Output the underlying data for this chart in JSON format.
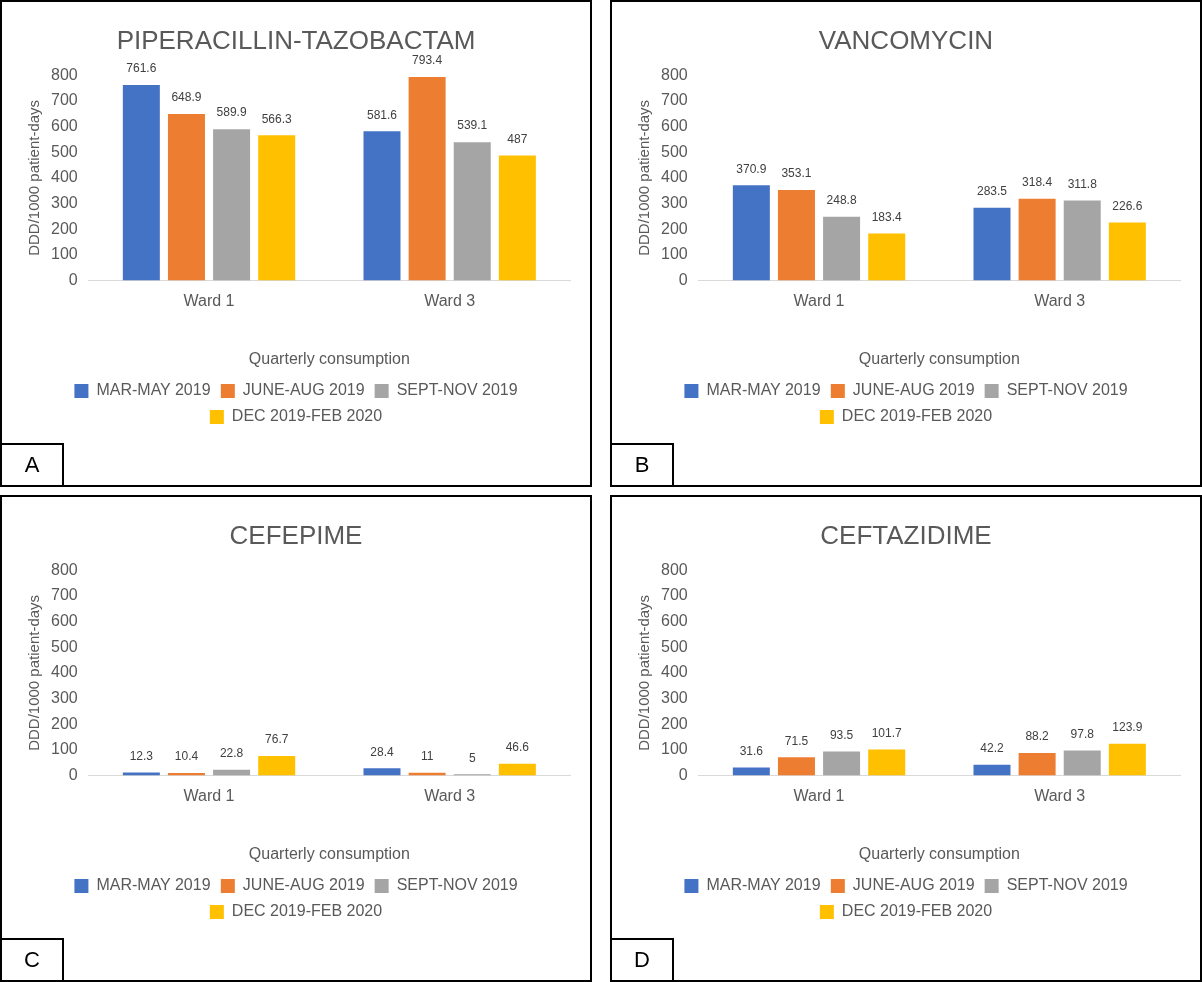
{
  "chart_data": [
    {
      "type": "bar",
      "title": "PIPERACILLIN-TAZOBACTAM",
      "xlabel": "Quarterly consumption",
      "ylabel": "DDD/1000 patient-days",
      "categories": [
        "Ward 1",
        "Ward 3"
      ],
      "series": [
        {
          "name": "MAR-MAY 2019",
          "color": "#4472c4",
          "values": [
            761.6,
            581.6
          ]
        },
        {
          "name": "JUNE-AUG 2019",
          "color": "#ed7d31",
          "values": [
            648.9,
            793.4
          ]
        },
        {
          "name": "SEPT-NOV 2019",
          "color": "#a5a5a5",
          "values": [
            589.9,
            539.1
          ]
        },
        {
          "name": "DEC 2019-FEB 2020",
          "color": "#ffc000",
          "values": [
            566.3,
            487
          ]
        }
      ],
      "ylim": [
        0,
        800
      ],
      "yticks": [
        0,
        100,
        200,
        300,
        400,
        500,
        600,
        700,
        800
      ],
      "grid": false,
      "legend": "bottom",
      "data_labels": true,
      "annotations": [
        "A"
      ]
    },
    {
      "type": "bar",
      "title": "VANCOMYCIN",
      "xlabel": "Quarterly consumption",
      "ylabel": "DDD/1000 patient-days",
      "categories": [
        "Ward 1",
        "Ward 3"
      ],
      "series": [
        {
          "name": "MAR-MAY 2019",
          "color": "#4472c4",
          "values": [
            370.9,
            283.5
          ]
        },
        {
          "name": "JUNE-AUG 2019",
          "color": "#ed7d31",
          "values": [
            353.1,
            318.4
          ]
        },
        {
          "name": "SEPT-NOV 2019",
          "color": "#a5a5a5",
          "values": [
            248.8,
            311.8
          ]
        },
        {
          "name": "DEC 2019-FEB 2020",
          "color": "#ffc000",
          "values": [
            183.4,
            226.6
          ]
        }
      ],
      "ylim": [
        0,
        800
      ],
      "yticks": [
        0,
        100,
        200,
        300,
        400,
        500,
        600,
        700,
        800
      ],
      "grid": false,
      "legend": "bottom",
      "data_labels": true,
      "annotations": [
        "B"
      ]
    },
    {
      "type": "bar",
      "title": "CEFEPIME",
      "xlabel": "Quarterly consumption",
      "ylabel": "DDD/1000 patient-days",
      "categories": [
        "Ward 1",
        "Ward 3"
      ],
      "series": [
        {
          "name": "MAR-MAY 2019",
          "color": "#4472c4",
          "values": [
            12.3,
            28.4
          ]
        },
        {
          "name": "JUNE-AUG 2019",
          "color": "#ed7d31",
          "values": [
            10.4,
            11
          ]
        },
        {
          "name": "SEPT-NOV 2019",
          "color": "#a5a5a5",
          "values": [
            22.8,
            5
          ]
        },
        {
          "name": "DEC 2019-FEB 2020",
          "color": "#ffc000",
          "values": [
            76.7,
            46.6
          ]
        }
      ],
      "ylim": [
        0,
        800
      ],
      "yticks": [
        0,
        100,
        200,
        300,
        400,
        500,
        600,
        700,
        800
      ],
      "grid": false,
      "legend": "bottom",
      "data_labels": true,
      "annotations": [
        "C"
      ]
    },
    {
      "type": "bar",
      "title": "CEFTAZIDIME",
      "xlabel": "Quarterly consumption",
      "ylabel": "DDD/1000 patient-days",
      "categories": [
        "Ward 1",
        "Ward 3"
      ],
      "series": [
        {
          "name": "MAR-MAY 2019",
          "color": "#4472c4",
          "values": [
            31.6,
            42.2
          ]
        },
        {
          "name": "JUNE-AUG 2019",
          "color": "#ed7d31",
          "values": [
            71.5,
            88.2
          ]
        },
        {
          "name": "SEPT-NOV 2019",
          "color": "#a5a5a5",
          "values": [
            93.5,
            97.8
          ]
        },
        {
          "name": "DEC 2019-FEB 2020",
          "color": "#ffc000",
          "values": [
            101.7,
            123.9
          ]
        }
      ],
      "ylim": [
        0,
        800
      ],
      "yticks": [
        0,
        100,
        200,
        300,
        400,
        500,
        600,
        700,
        800
      ],
      "grid": false,
      "legend": "bottom",
      "data_labels": true,
      "annotations": [
        "D"
      ]
    }
  ]
}
